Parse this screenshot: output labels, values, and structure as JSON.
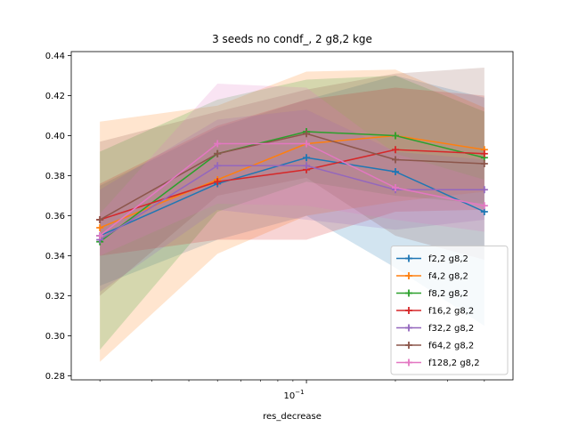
{
  "chart_data": {
    "type": "line",
    "title": "3 seeds no condf_, 2 g8,2 kge",
    "xlabel": "res_decrease",
    "ylabel": "",
    "xscale": "log",
    "x": [
      0.02,
      0.05,
      0.1,
      0.2,
      0.4
    ],
    "xlim": [
      0.016,
      0.5
    ],
    "ylim": [
      0.278,
      0.442
    ],
    "yticks": [
      0.28,
      0.3,
      0.32,
      0.34,
      0.36,
      0.38,
      0.4,
      0.42,
      0.44
    ],
    "ytick_labels": [
      "0.28",
      "0.30",
      "0.32",
      "0.34",
      "0.36",
      "0.38",
      "0.40",
      "0.42",
      "0.44"
    ],
    "xtick_major": [
      0.1
    ],
    "xtick_major_label": "10",
    "xtick_major_exponent": "−1",
    "xtick_minor": [
      0.02,
      0.03,
      0.04,
      0.05,
      0.06,
      0.07,
      0.08,
      0.09,
      0.2,
      0.3,
      0.4
    ],
    "grid": false,
    "legend_position": "lower-right",
    "series": [
      {
        "name": "f2,2 g8,2",
        "color": "#1f77b4",
        "values": [
          0.35,
          0.376,
          0.389,
          0.382,
          0.362
        ],
        "lower": [
          0.325,
          0.348,
          0.36,
          0.334,
          0.305
        ],
        "upper": [
          0.375,
          0.404,
          0.418,
          0.43,
          0.419
        ]
      },
      {
        "name": "f4,2 g8,2",
        "color": "#ff7f0e",
        "values": [
          0.354,
          0.378,
          0.396,
          0.4,
          0.393
        ],
        "lower": [
          0.287,
          0.341,
          0.36,
          0.367,
          0.372
        ],
        "upper": [
          0.407,
          0.415,
          0.432,
          0.433,
          0.414
        ]
      },
      {
        "name": "f8,2 g8,2",
        "color": "#2ca02c",
        "values": [
          0.347,
          0.391,
          0.402,
          0.4,
          0.389
        ],
        "lower": [
          0.293,
          0.362,
          0.377,
          0.37,
          0.366
        ],
        "upper": [
          0.392,
          0.418,
          0.428,
          0.43,
          0.412
        ]
      },
      {
        "name": "f16,2 g8,2",
        "color": "#d62728",
        "values": [
          0.358,
          0.377,
          0.383,
          0.393,
          0.391
        ],
        "lower": [
          0.34,
          0.348,
          0.348,
          0.362,
          0.363
        ],
        "upper": [
          0.376,
          0.405,
          0.418,
          0.424,
          0.42
        ]
      },
      {
        "name": "f32,2 g8,2",
        "color": "#9467bd",
        "values": [
          0.348,
          0.385,
          0.385,
          0.373,
          0.373
        ],
        "lower": [
          0.322,
          0.363,
          0.358,
          0.353,
          0.358
        ],
        "upper": [
          0.373,
          0.408,
          0.413,
          0.392,
          0.388
        ]
      },
      {
        "name": "f64,2 g8,2",
        "color": "#8c564b",
        "values": [
          0.358,
          0.391,
          0.401,
          0.388,
          0.386
        ],
        "lower": [
          0.32,
          0.37,
          0.379,
          0.35,
          0.338
        ],
        "upper": [
          0.397,
          0.412,
          0.423,
          0.431,
          0.434
        ]
      },
      {
        "name": "f128,2 g8,2",
        "color": "#e377c2",
        "values": [
          0.35,
          0.396,
          0.396,
          0.374,
          0.365
        ],
        "lower": [
          0.34,
          0.366,
          0.365,
          0.358,
          0.352
        ],
        "upper": [
          0.361,
          0.426,
          0.424,
          0.391,
          0.378
        ]
      }
    ]
  }
}
